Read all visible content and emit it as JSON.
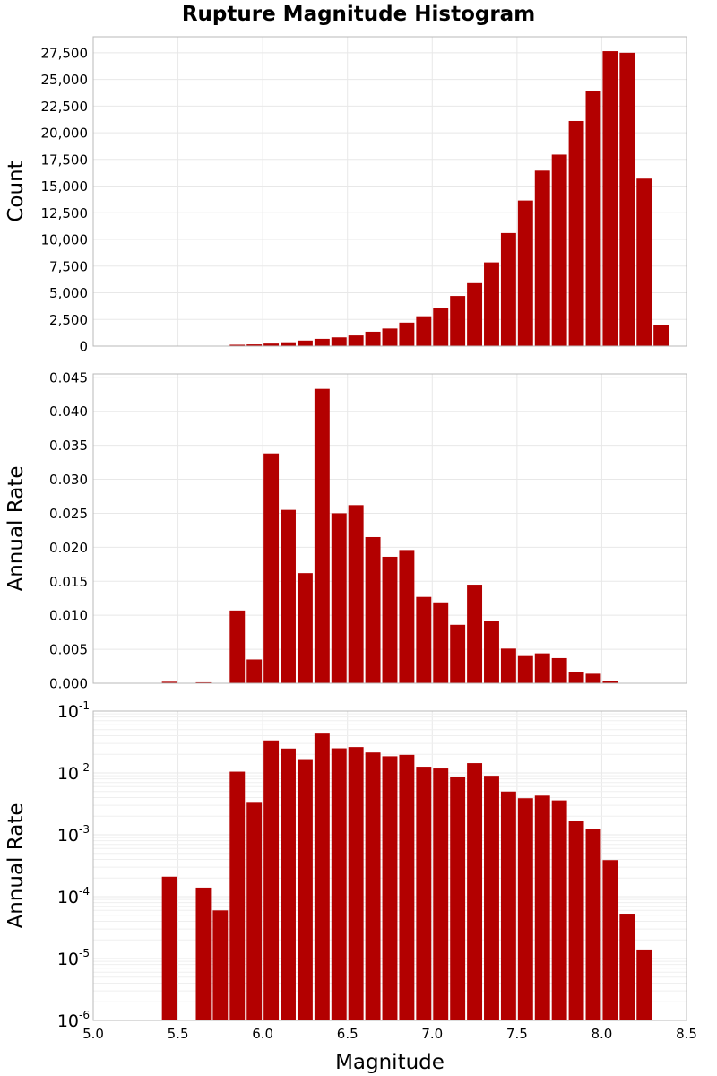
{
  "title": "Rupture Magnitude Histogram",
  "chart_data": [
    {
      "type": "bar",
      "panel": "count",
      "xlim": [
        5.0,
        8.5
      ],
      "ylim": [
        0,
        29000
      ],
      "ylabel": "Count",
      "xlabel": "",
      "grid": true,
      "yticks": [
        0,
        2500,
        5000,
        7500,
        10000,
        12500,
        15000,
        17500,
        20000,
        22500,
        25000,
        27500
      ],
      "ytick_labels": [
        "0",
        "2,500",
        "5,000",
        "7,500",
        "10,000",
        "12,500",
        "15,000",
        "17,500",
        "20,000",
        "22,500",
        "25,000",
        "27,500"
      ],
      "x": [
        5.05,
        5.15,
        5.25,
        5.35,
        5.45,
        5.55,
        5.65,
        5.75,
        5.85,
        5.95,
        6.05,
        6.15,
        6.25,
        6.35,
        6.45,
        6.55,
        6.65,
        6.75,
        6.85,
        6.95,
        7.05,
        7.15,
        7.25,
        7.35,
        7.45,
        7.55,
        7.65,
        7.75,
        7.85,
        7.95,
        8.05,
        8.15,
        8.25,
        8.35,
        8.45
      ],
      "values": [
        0,
        0,
        0,
        0,
        30,
        0,
        40,
        30,
        130,
        160,
        240,
        360,
        520,
        680,
        820,
        1000,
        1350,
        1650,
        2200,
        2800,
        3600,
        4700,
        5900,
        7850,
        10600,
        13650,
        16450,
        17950,
        21100,
        23900,
        27650,
        27500,
        15700,
        2000,
        0
      ]
    },
    {
      "type": "bar",
      "panel": "rate-linear",
      "xlim": [
        5.0,
        8.5
      ],
      "ylim": [
        0,
        0.0455
      ],
      "ylabel": "Annual Rate",
      "xlabel": "",
      "grid": true,
      "yticks": [
        0,
        0.005,
        0.01,
        0.015,
        0.02,
        0.025,
        0.03,
        0.035,
        0.04,
        0.045
      ],
      "ytick_labels": [
        "0.000",
        "0.005",
        "0.010",
        "0.015",
        "0.020",
        "0.025",
        "0.030",
        "0.035",
        "0.040",
        "0.045"
      ],
      "x": [
        5.05,
        5.15,
        5.25,
        5.35,
        5.45,
        5.55,
        5.65,
        5.75,
        5.85,
        5.95,
        6.05,
        6.15,
        6.25,
        6.35,
        6.45,
        6.55,
        6.65,
        6.75,
        6.85,
        6.95,
        7.05,
        7.15,
        7.25,
        7.35,
        7.45,
        7.55,
        7.65,
        7.75,
        7.85,
        7.95,
        8.05,
        8.15,
        8.25,
        8.35,
        8.45
      ],
      "values": [
        0,
        0,
        0,
        0,
        0.00022,
        0,
        0.00014,
        6e-05,
        0.0107,
        0.0035,
        0.0338,
        0.0255,
        0.0162,
        0.0433,
        0.025,
        0.0262,
        0.0215,
        0.0186,
        0.0196,
        0.0127,
        0.0119,
        0.0086,
        0.0145,
        0.0091,
        0.0051,
        0.004,
        0.0044,
        0.0037,
        0.0017,
        0.0014,
        0.00039,
        5.3e-05,
        1.4e-05,
        0,
        0
      ]
    },
    {
      "type": "bar",
      "panel": "rate-log",
      "xlim": [
        5.0,
        8.5
      ],
      "ylim": [
        1e-06,
        0.1
      ],
      "yscale": "log",
      "ylabel": "Annual Rate",
      "xlabel": "Magnitude",
      "grid": true,
      "ytick_exponents": [
        "-6",
        "-5",
        "-4",
        "-3",
        "-2",
        "-1"
      ],
      "ytick_base": "10",
      "xticks": [
        5.0,
        5.5,
        6.0,
        6.5,
        7.0,
        7.5,
        8.0,
        8.5
      ],
      "xtick_labels": [
        "5.0",
        "5.5",
        "6.0",
        "6.5",
        "7.0",
        "7.5",
        "8.0",
        "8.5"
      ],
      "x": [
        5.05,
        5.15,
        5.25,
        5.35,
        5.45,
        5.55,
        5.65,
        5.75,
        5.85,
        5.95,
        6.05,
        6.15,
        6.25,
        6.35,
        6.45,
        6.55,
        6.65,
        6.75,
        6.85,
        6.95,
        7.05,
        7.15,
        7.25,
        7.35,
        7.45,
        7.55,
        7.65,
        7.75,
        7.85,
        7.95,
        8.05,
        8.15,
        8.25,
        8.35,
        8.45
      ],
      "values": [
        0,
        0,
        0,
        0,
        0.00021,
        0,
        0.00014,
        6e-05,
        0.0105,
        0.0034,
        0.0335,
        0.0248,
        0.0162,
        0.0432,
        0.025,
        0.0262,
        0.0214,
        0.0186,
        0.0196,
        0.0126,
        0.0118,
        0.0085,
        0.0144,
        0.009,
        0.005,
        0.0039,
        0.0043,
        0.0036,
        0.00165,
        0.00125,
        0.00039,
        5.3e-05,
        1.4e-05,
        0,
        0
      ]
    }
  ],
  "colors": {
    "bar": "#b30000",
    "grid": "#e8e8e8",
    "frame": "#b8b8b8"
  }
}
